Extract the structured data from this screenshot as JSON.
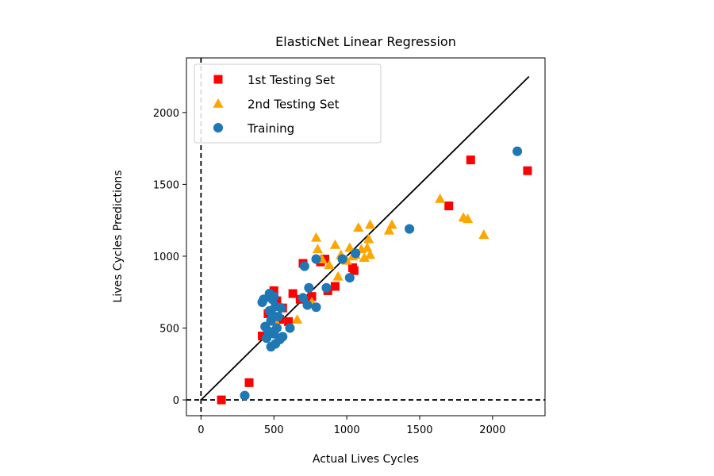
{
  "chart_data": {
    "type": "scatter",
    "title": "ElasticNet Linear Regression",
    "xlabel": "Actual Lives Cycles",
    "ylabel": "Lives Cycles Predictions",
    "xlim": [
      -100,
      2360
    ],
    "ylim": [
      -110,
      2380
    ],
    "xticks": [
      0,
      500,
      1000,
      1500,
      2000
    ],
    "yticks": [
      0,
      500,
      1000,
      1500,
      2000
    ],
    "grid": false,
    "legend_position": "top-left",
    "reference_lines": {
      "identity_line": {
        "x": [
          0,
          2250
        ],
        "y": [
          0,
          2250
        ],
        "color": "#000000",
        "style": "solid"
      },
      "zero_lines": {
        "color": "#000000",
        "style": "dashed"
      }
    },
    "series": [
      {
        "name": "1st Testing Set",
        "marker": "square",
        "color": "#ff0000",
        "points": [
          [
            140,
            0
          ],
          [
            330,
            120
          ],
          [
            420,
            445
          ],
          [
            460,
            600
          ],
          [
            500,
            760
          ],
          [
            520,
            690
          ],
          [
            540,
            560
          ],
          [
            560,
            640
          ],
          [
            600,
            545
          ],
          [
            630,
            740
          ],
          [
            680,
            700
          ],
          [
            700,
            950
          ],
          [
            760,
            720
          ],
          [
            820,
            960
          ],
          [
            850,
            980
          ],
          [
            870,
            760
          ],
          [
            920,
            790
          ],
          [
            1040,
            920
          ],
          [
            1050,
            900
          ],
          [
            1700,
            1350
          ],
          [
            1850,
            1670
          ],
          [
            2240,
            1595
          ]
        ]
      },
      {
        "name": "2nd Testing Set",
        "marker": "triangle",
        "color": "#ffa500",
        "points": [
          [
            520,
            530
          ],
          [
            660,
            560
          ],
          [
            760,
            680
          ],
          [
            790,
            1130
          ],
          [
            800,
            1050
          ],
          [
            830,
            980
          ],
          [
            880,
            940
          ],
          [
            920,
            1080
          ],
          [
            940,
            860
          ],
          [
            960,
            1010
          ],
          [
            1000,
            970
          ],
          [
            1020,
            1060
          ],
          [
            1040,
            1000
          ],
          [
            1060,
            1010
          ],
          [
            1080,
            1200
          ],
          [
            1100,
            1050
          ],
          [
            1120,
            990
          ],
          [
            1140,
            1060
          ],
          [
            1150,
            1120
          ],
          [
            1160,
            1010
          ],
          [
            1160,
            1220
          ],
          [
            1290,
            1180
          ],
          [
            1310,
            1220
          ],
          [
            1640,
            1400
          ],
          [
            1800,
            1270
          ],
          [
            1830,
            1260
          ],
          [
            1940,
            1150
          ]
        ]
      },
      {
        "name": "Training",
        "marker": "circle",
        "color": "#1f77b4",
        "points": [
          [
            300,
            30
          ],
          [
            420,
            680
          ],
          [
            430,
            700
          ],
          [
            440,
            510
          ],
          [
            450,
            430
          ],
          [
            460,
            480
          ],
          [
            470,
            620
          ],
          [
            470,
            740
          ],
          [
            480,
            550
          ],
          [
            480,
            370
          ],
          [
            490,
            590
          ],
          [
            490,
            700
          ],
          [
            500,
            460
          ],
          [
            500,
            720
          ],
          [
            510,
            650
          ],
          [
            510,
            390
          ],
          [
            520,
            500
          ],
          [
            530,
            580
          ],
          [
            540,
            420
          ],
          [
            550,
            640
          ],
          [
            560,
            440
          ],
          [
            610,
            500
          ],
          [
            700,
            710
          ],
          [
            710,
            930
          ],
          [
            730,
            660
          ],
          [
            740,
            780
          ],
          [
            790,
            980
          ],
          [
            790,
            645
          ],
          [
            860,
            780
          ],
          [
            970,
            980
          ],
          [
            1020,
            850
          ],
          [
            1060,
            1020
          ],
          [
            1430,
            1190
          ],
          [
            2170,
            1730
          ]
        ]
      }
    ]
  }
}
